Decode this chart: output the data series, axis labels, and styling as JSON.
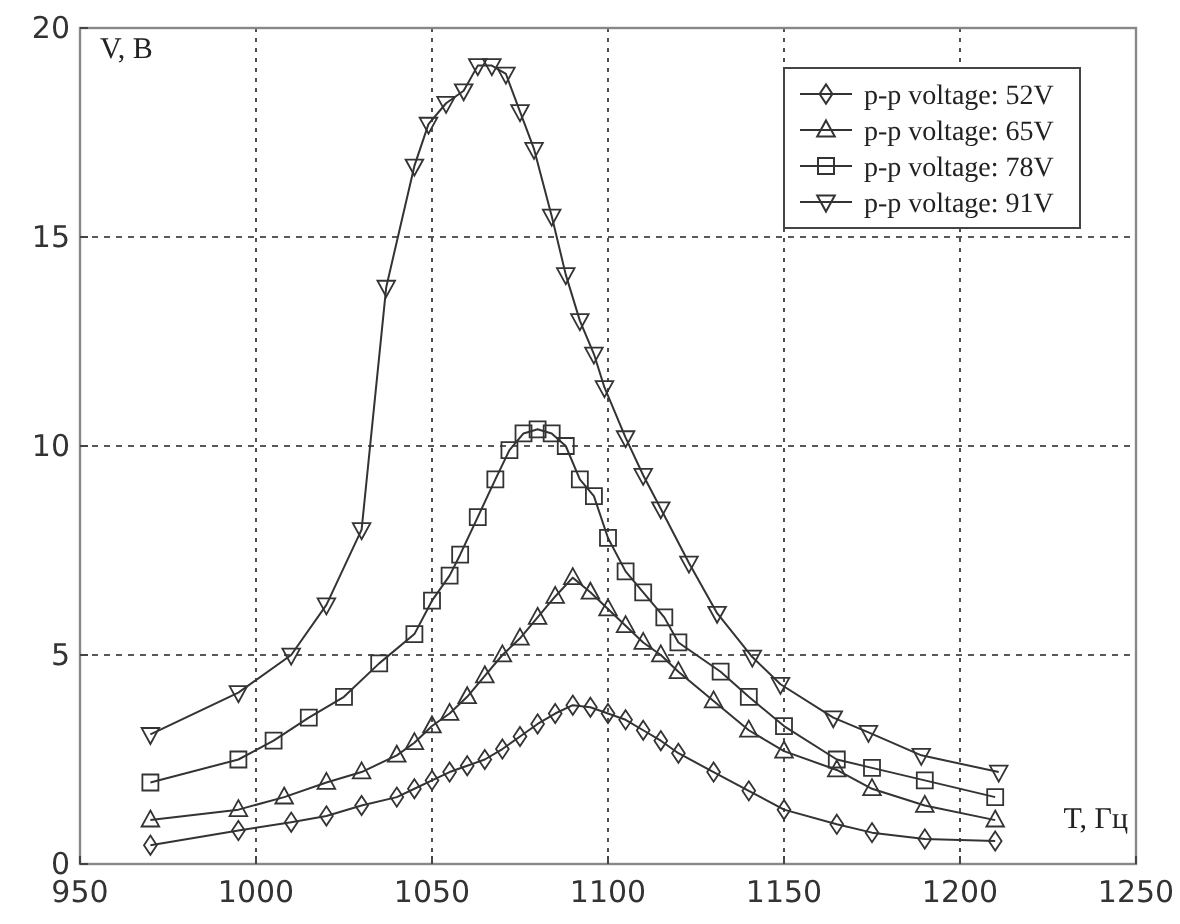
{
  "chart_data": {
    "type": "line",
    "xlabel": "T, Гц",
    "ylabel": "V, В",
    "xlim": [
      950,
      1250
    ],
    "ylim": [
      0,
      20
    ],
    "xticks": [
      950,
      1000,
      1050,
      1100,
      1150,
      1200,
      1250
    ],
    "yticks": [
      0,
      5,
      10,
      15,
      20
    ],
    "grid": true,
    "legend": "top right",
    "line_style": "solid",
    "series": [
      {
        "name": "p-p voltage: 52V",
        "color": "#333333",
        "marker": "diamond",
        "x": [
          970,
          995,
          1010,
          1020,
          1030,
          1040,
          1045,
          1050,
          1055,
          1060,
          1065,
          1070,
          1075,
          1080,
          1085,
          1090,
          1095,
          1100,
          1105,
          1110,
          1115,
          1120,
          1130,
          1140,
          1150,
          1165,
          1175,
          1190,
          1210
        ],
        "values": [
          0.45,
          0.8,
          1.0,
          1.15,
          1.4,
          1.6,
          1.8,
          2.0,
          2.2,
          2.35,
          2.5,
          2.75,
          3.05,
          3.35,
          3.6,
          3.8,
          3.75,
          3.6,
          3.45,
          3.2,
          2.95,
          2.65,
          2.2,
          1.75,
          1.3,
          0.95,
          0.75,
          0.6,
          0.55
        ]
      },
      {
        "name": "p-p voltage: 65V",
        "color": "#333333",
        "marker": "triangle",
        "x": [
          970,
          995,
          1008,
          1020,
          1030,
          1040,
          1045,
          1050,
          1055,
          1060,
          1065,
          1070,
          1075,
          1080,
          1085,
          1090,
          1095,
          1100,
          1105,
          1110,
          1115,
          1120,
          1130,
          1140,
          1150,
          1165,
          1175,
          1190,
          1210
        ],
        "values": [
          1.05,
          1.3,
          1.6,
          1.95,
          2.2,
          2.6,
          2.9,
          3.3,
          3.6,
          4.0,
          4.5,
          5.0,
          5.4,
          5.9,
          6.4,
          6.85,
          6.5,
          6.1,
          5.7,
          5.3,
          5.0,
          4.6,
          3.9,
          3.2,
          2.7,
          2.25,
          1.8,
          1.4,
          1.05
        ]
      },
      {
        "name": "p-p voltage: 78V",
        "color": "#333333",
        "marker": "square",
        "x": [
          970,
          995,
          1005,
          1015,
          1025,
          1035,
          1045,
          1050,
          1055,
          1058,
          1063,
          1068,
          1072,
          1076,
          1080,
          1084,
          1088,
          1092,
          1096,
          1100,
          1105,
          1110,
          1116,
          1120,
          1132,
          1140,
          1150,
          1165,
          1175,
          1190,
          1210
        ],
        "values": [
          1.95,
          2.5,
          2.95,
          3.5,
          4.0,
          4.8,
          5.5,
          6.3,
          6.9,
          7.4,
          8.3,
          9.2,
          9.9,
          10.3,
          10.4,
          10.3,
          10.0,
          9.2,
          8.8,
          7.8,
          7.0,
          6.5,
          5.9,
          5.3,
          4.6,
          4.0,
          3.3,
          2.5,
          2.3,
          2.0,
          1.6
        ]
      },
      {
        "name": "p-p voltage: 91V",
        "color": "#333333",
        "marker": "triangle-down",
        "x": [
          970,
          995,
          1010,
          1020,
          1030,
          1037,
          1045,
          1049,
          1054,
          1059,
          1063,
          1067,
          1071,
          1075,
          1079,
          1084,
          1088,
          1092,
          1096,
          1099,
          1105,
          1110,
          1115,
          1123,
          1131,
          1141,
          1149,
          1164,
          1174,
          1189,
          1211
        ],
        "values": [
          3.1,
          4.1,
          5.0,
          6.2,
          8.0,
          13.8,
          16.7,
          17.7,
          18.2,
          18.5,
          19.1,
          19.1,
          18.9,
          18.0,
          17.1,
          15.5,
          14.1,
          13.0,
          12.2,
          11.4,
          10.2,
          9.3,
          8.5,
          7.2,
          6.0,
          4.95,
          4.3,
          3.5,
          3.15,
          2.6,
          2.2
        ]
      }
    ]
  }
}
